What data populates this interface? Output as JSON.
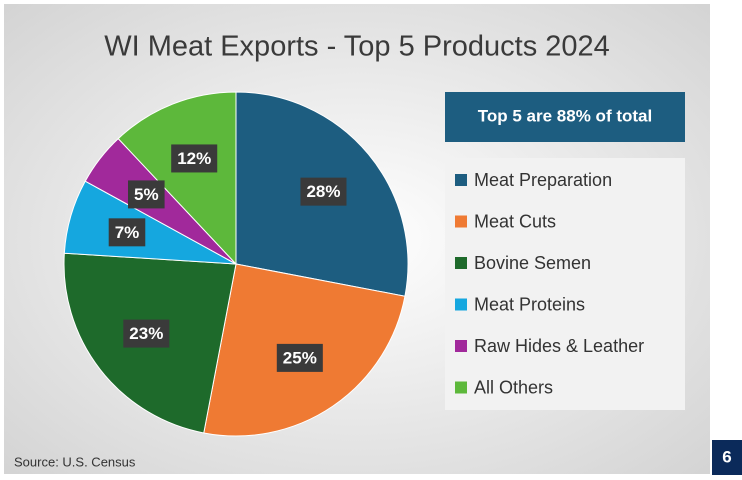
{
  "chart_data": {
    "type": "pie",
    "title": "WI Meat Exports - Top 5 Products 2024",
    "annotation": "Top 5 are 88% of total",
    "source": "Source: U.S. Census",
    "page_number": 6,
    "categories": [
      "Meat Preparation",
      "Meat Cuts",
      "Bovine Semen",
      "Meat Proteins",
      "Raw Hides & Leather",
      "All Others"
    ],
    "values": [
      28,
      25,
      23,
      7,
      5,
      12
    ],
    "value_labels": [
      "28%",
      "25%",
      "23%",
      "7%",
      "5%",
      "12%"
    ],
    "colors": [
      "#1d5d80",
      "#ef7a33",
      "#1e6a2b",
      "#15a7df",
      "#a1299b",
      "#5db83b"
    ],
    "legend": "right"
  }
}
